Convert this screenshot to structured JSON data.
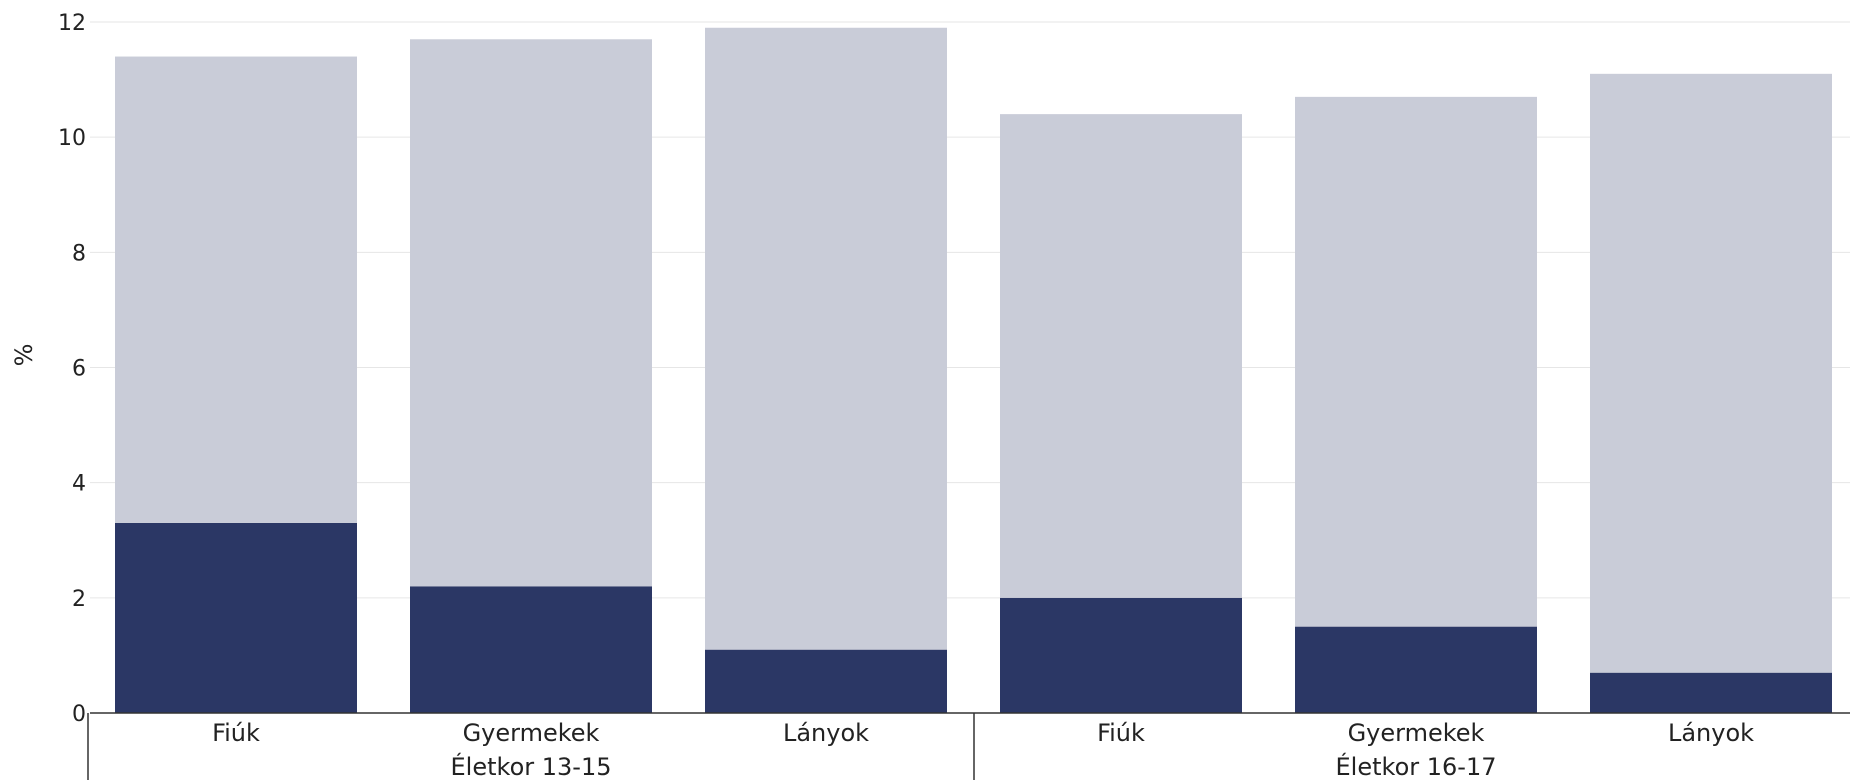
{
  "chart_data": {
    "type": "bar",
    "stacked": true,
    "ylabel": "%",
    "ylim": [
      0,
      12
    ],
    "yticks": [
      0,
      2,
      4,
      6,
      8,
      10,
      12
    ],
    "grid": true,
    "groups": [
      {
        "label": "Életkor 13-15",
        "categories": [
          "Fiúk",
          "Gyermekek",
          "Lányok"
        ]
      },
      {
        "label": "Életkor 16-17",
        "categories": [
          "Fiúk",
          "Gyermekek",
          "Lányok"
        ]
      }
    ],
    "series": [
      {
        "color": "#2b3765",
        "values": [
          3.3,
          2.2,
          1.1,
          2.0,
          1.5,
          0.7
        ]
      },
      {
        "color": "#c9ccd8",
        "values": [
          8.1,
          9.5,
          10.8,
          8.4,
          9.2,
          10.4
        ]
      }
    ]
  }
}
